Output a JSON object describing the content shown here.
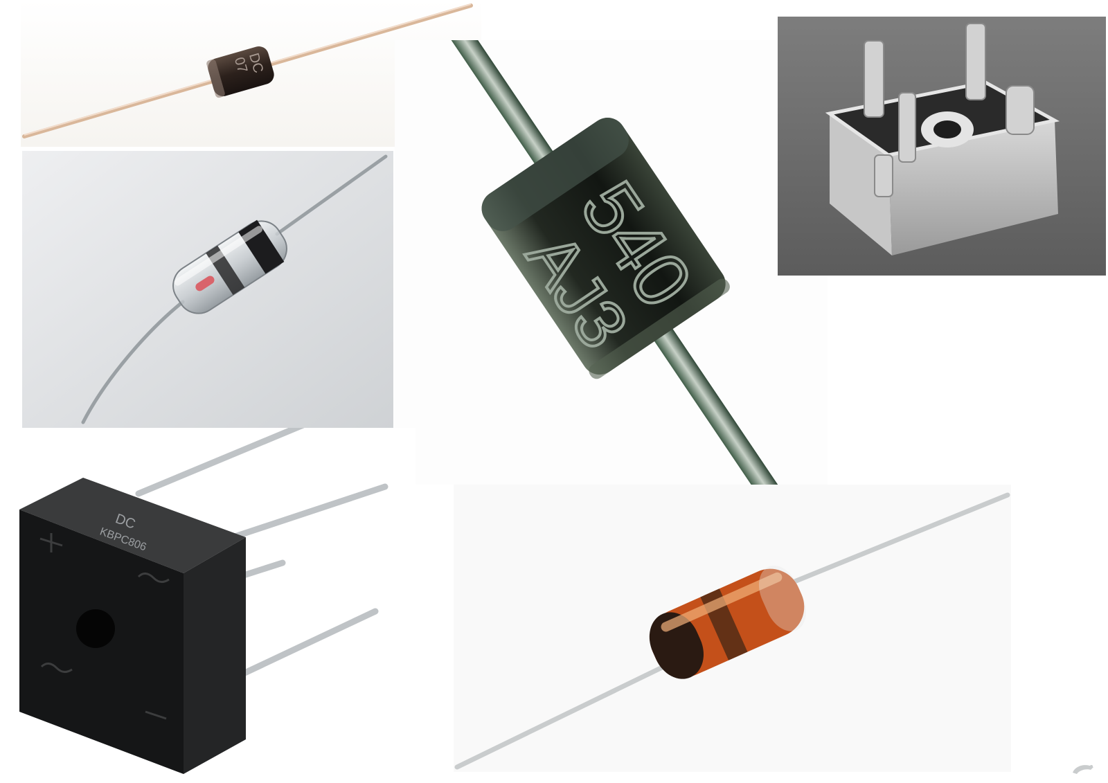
{
  "photos": [
    {
      "id": "diode-black-axial",
      "markings": [
        "07",
        "DC"
      ]
    },
    {
      "id": "diode-glass-red"
    },
    {
      "id": "diode-black-large",
      "markings": [
        "540",
        "AJ3"
      ]
    },
    {
      "id": "bridge-rectifier-metal"
    },
    {
      "id": "bridge-rectifier-black",
      "markings": [
        "DC",
        "KBPC806"
      ]
    },
    {
      "id": "diode-glass-orange"
    }
  ],
  "colors": {
    "background": "#ffffff",
    "diode_body_dark": "#1b1d1a",
    "glass_orange": "#c4501a",
    "lead_wire": "#c9cccd"
  }
}
